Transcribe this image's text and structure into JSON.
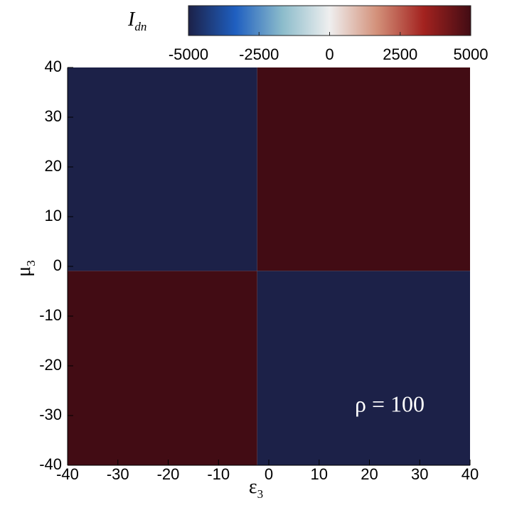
{
  "chart_data": {
    "type": "heatmap",
    "x_edges": [
      -40,
      -2.3,
      40
    ],
    "y_edges": [
      -40,
      -0.9,
      40
    ],
    "z": [
      [
        5000,
        -5000
      ],
      [
        -5000,
        5000
      ]
    ],
    "xlim": [
      -40,
      40
    ],
    "ylim": [
      -40,
      40
    ],
    "xticks": [
      -40,
      -30,
      -20,
      -10,
      0,
      10,
      20,
      30,
      40
    ],
    "yticks": [
      -40,
      -30,
      -20,
      -10,
      0,
      10,
      20,
      30,
      40
    ],
    "xlabel": "ε",
    "xlabel_sub": "3",
    "ylabel": "μ",
    "ylabel_sub": "3",
    "annotation": "ρ = 100",
    "colorbar": {
      "label": "I",
      "label_sub": "dn",
      "lim": [
        -5000,
        5000
      ],
      "ticks": [
        -5000,
        -2500,
        0,
        2500,
        5000
      ],
      "colormap": [
        "#1c2148",
        "#1f5fc0",
        "#8cbccb",
        "#efefef",
        "#d3917a",
        "#a3221f",
        "#420c14"
      ]
    }
  }
}
